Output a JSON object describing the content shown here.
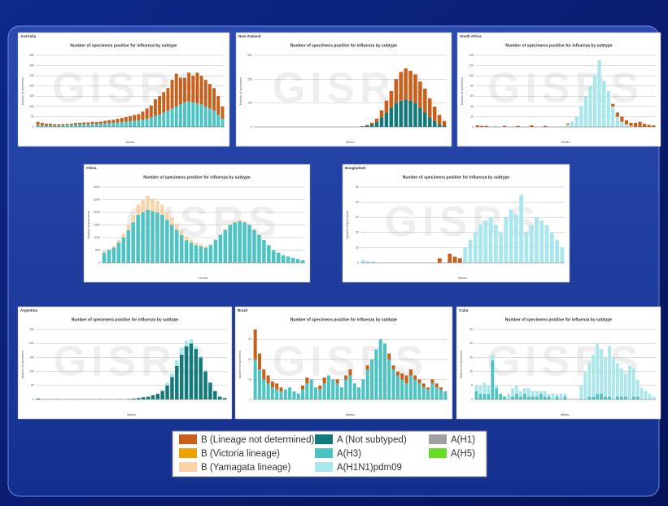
{
  "watermark": "GISRS",
  "legend": [
    {
      "name": "B (Lineage not determined)",
      "color": "#c8601c"
    },
    {
      "name": "B (Victoria lineage)",
      "color": "#f0a000"
    },
    {
      "name": "B (Yamagata lineage)",
      "color": "#f9d4a8"
    },
    {
      "name": "A (Not subtyped)",
      "color": "#127a7a"
    },
    {
      "name": "A(H3)",
      "color": "#4cc4c4"
    },
    {
      "name": "A(H1N1)pdm09",
      "color": "#a8e8ec"
    },
    {
      "name": "A(H1)",
      "color": "#a0a0a0"
    },
    {
      "name": "A(H5)",
      "color": "#66dd22"
    }
  ],
  "chart_data": [
    {
      "type": "bar",
      "stacked": true,
      "country": "Australia",
      "title": "Number of specimens positive for influenza by subtype",
      "y_label": "Number of specimens",
      "x_label": "Weeks",
      "ylim": [
        0,
        350
      ],
      "yticks": [
        0,
        50,
        100,
        150,
        200,
        250,
        300,
        350
      ],
      "grid": true,
      "series": [
        {
          "name": "A(H3)",
          "color": "#4cc4c4",
          "values": [
            10,
            8,
            6,
            8,
            5,
            6,
            8,
            10,
            10,
            12,
            12,
            14,
            14,
            15,
            14,
            16,
            18,
            18,
            20,
            22,
            24,
            26,
            28,
            30,
            32,
            35,
            40,
            45,
            55,
            60,
            70,
            80,
            90,
            100,
            110,
            120,
            125,
            120,
            115,
            110,
            100,
            90,
            80,
            60,
            40
          ]
        },
        {
          "name": "B (Lineage not determined)",
          "color": "#c8601c",
          "values": [
            15,
            12,
            10,
            8,
            8,
            6,
            6,
            5,
            6,
            8,
            8,
            8,
            8,
            10,
            10,
            10,
            12,
            15,
            15,
            18,
            20,
            22,
            25,
            28,
            30,
            40,
            50,
            60,
            80,
            90,
            100,
            110,
            140,
            160,
            130,
            120,
            140,
            130,
            150,
            140,
            130,
            120,
            110,
            90,
            60
          ]
        }
      ]
    },
    {
      "type": "bar",
      "stacked": true,
      "country": "New Zealand",
      "title": "Number of specimens positive for influenza by subtype",
      "y_label": "Number of specimens",
      "x_label": "Weeks",
      "ylim": [
        0,
        300
      ],
      "yticks": [
        0,
        100,
        200,
        300
      ],
      "grid": true,
      "series": [
        {
          "name": "A (Not subtyped)",
          "color": "#127a7a",
          "values": [
            0,
            0,
            0,
            0,
            0,
            0,
            0,
            0,
            0,
            0,
            0,
            0,
            0,
            0,
            0,
            0,
            0,
            0,
            0,
            0,
            0,
            0,
            2,
            5,
            10,
            20,
            40,
            60,
            80,
            100,
            110,
            115,
            110,
            100,
            80,
            60,
            40,
            25,
            10,
            5
          ]
        },
        {
          "name": "B (Lineage not determined)",
          "color": "#c8601c",
          "values": [
            0,
            0,
            0,
            0,
            0,
            0,
            0,
            0,
            0,
            0,
            0,
            0,
            0,
            0,
            0,
            0,
            0,
            0,
            0,
            0,
            0,
            0,
            1,
            3,
            8,
            15,
            30,
            50,
            70,
            100,
            120,
            130,
            125,
            120,
            110,
            100,
            80,
            60,
            40,
            20
          ]
        }
      ]
    },
    {
      "type": "bar",
      "stacked": true,
      "country": "South Africa",
      "title": "Number of specimens positive for influenza by subtype",
      "y_label": "Number of specimens",
      "x_label": "Weeks",
      "ylim": [
        0,
        140
      ],
      "yticks": [
        0,
        20,
        40,
        60,
        80,
        100,
        120,
        140
      ],
      "grid": true,
      "series": [
        {
          "name": "A(H1N1)pdm09",
          "color": "#a8e8ec",
          "values": [
            0,
            0,
            0,
            0,
            2,
            0,
            0,
            0,
            1,
            0,
            0,
            0,
            0,
            0,
            0,
            0,
            0,
            0,
            0,
            0,
            5,
            10,
            20,
            40,
            60,
            80,
            100,
            130,
            90,
            70,
            40,
            20,
            10,
            5,
            2,
            0,
            0,
            0,
            0,
            0
          ]
        },
        {
          "name": "B (Lineage not determined)",
          "color": "#c8601c",
          "values": [
            3,
            2,
            2,
            0,
            0,
            0,
            2,
            0,
            0,
            2,
            0,
            0,
            3,
            0,
            0,
            2,
            0,
            0,
            0,
            0,
            2,
            0,
            0,
            0,
            0,
            0,
            0,
            0,
            0,
            0,
            5,
            8,
            10,
            8,
            6,
            8,
            10,
            6,
            4,
            3
          ]
        }
      ]
    },
    {
      "type": "bar",
      "stacked": true,
      "country": "China",
      "title": "Number of specimens positive for influenza by subtype",
      "y_label": "Number of specimens",
      "x_label": "Weeks",
      "ylim": [
        0,
        3000
      ],
      "yticks": [
        0,
        500,
        1000,
        1500,
        2000,
        2500,
        3000
      ],
      "grid": true,
      "series": [
        {
          "name": "A(H3)",
          "color": "#4cc4c4",
          "values": [
            400,
            500,
            600,
            800,
            1000,
            1300,
            1600,
            1900,
            2000,
            2100,
            2050,
            2000,
            1900,
            1700,
            1500,
            1300,
            1100,
            900,
            800,
            700,
            650,
            600,
            700,
            900,
            1100,
            1300,
            1500,
            1600,
            1650,
            1600,
            1500,
            1300,
            1100,
            900,
            700,
            500,
            400,
            300,
            250,
            200,
            150,
            100
          ]
        },
        {
          "name": "B (Yamagata lineage)",
          "color": "#f9d4a8",
          "values": [
            50,
            50,
            80,
            100,
            150,
            200,
            300,
            400,
            500,
            550,
            500,
            450,
            400,
            350,
            300,
            250,
            200,
            150,
            120,
            100,
            80,
            60,
            40,
            40,
            40,
            40,
            40,
            50,
            60,
            50,
            40,
            30,
            20,
            10,
            10,
            0,
            0,
            0,
            0,
            0,
            0,
            0
          ]
        }
      ]
    },
    {
      "type": "bar",
      "stacked": true,
      "country": "Bangladesh",
      "title": "Number of specimens positive for influenza by subtype",
      "y_label": "Number of specimens",
      "x_label": "Weeks",
      "ylim": [
        0,
        50
      ],
      "yticks": [
        0,
        10,
        20,
        30,
        40,
        50
      ],
      "grid": true,
      "series": [
        {
          "name": "A(H1N1)pdm09",
          "color": "#a8e8ec",
          "values": [
            2,
            1,
            1,
            0,
            0,
            0,
            0,
            0,
            0,
            0,
            0,
            0,
            0,
            0,
            0,
            0,
            0,
            0,
            0,
            0,
            10,
            15,
            20,
            25,
            28,
            30,
            25,
            20,
            30,
            35,
            32,
            45,
            20,
            25,
            30,
            28,
            25,
            20,
            15,
            10
          ]
        },
        {
          "name": "B (Lineage not determined)",
          "color": "#c8601c",
          "values": [
            0,
            0,
            0,
            0,
            0,
            0,
            0,
            0,
            0,
            0,
            0,
            0,
            0,
            0,
            0,
            3,
            0,
            6,
            4,
            3,
            0,
            0,
            0,
            0,
            0,
            0,
            0,
            0,
            0,
            0,
            0,
            0,
            0,
            0,
            0,
            0,
            0,
            0,
            0,
            0
          ]
        }
      ]
    },
    {
      "type": "bar",
      "stacked": true,
      "country": "Argentina",
      "title": "Number of specimens positive for influenza by subtype",
      "y_label": "Number of specimens",
      "x_label": "Weeks",
      "ylim": [
        0,
        250
      ],
      "yticks": [
        0,
        50,
        100,
        150,
        200,
        250
      ],
      "grid": true,
      "series": [
        {
          "name": "A (Not subtyped)",
          "color": "#127a7a",
          "values": [
            3,
            0,
            1,
            0,
            1,
            0,
            0,
            0,
            1,
            0,
            0,
            0,
            0,
            1,
            0,
            0,
            0,
            1,
            0,
            2,
            3,
            5,
            8,
            10,
            15,
            20,
            30,
            50,
            80,
            120,
            160,
            190,
            200,
            180,
            150,
            100,
            60,
            30,
            10,
            5
          ]
        },
        {
          "name": "A(H1N1)pdm09",
          "color": "#a8e8ec",
          "values": [
            0,
            0,
            0,
            0,
            0,
            0,
            0,
            0,
            0,
            0,
            0,
            0,
            0,
            0,
            0,
            0,
            0,
            0,
            0,
            0,
            0,
            0,
            0,
            0,
            0,
            0,
            5,
            10,
            15,
            20,
            25,
            20,
            15,
            10,
            5,
            5,
            0,
            0,
            0,
            0
          ]
        }
      ]
    },
    {
      "type": "bar",
      "stacked": true,
      "country": "Brazil",
      "title": "Number of specimens positive for influenza by subtype",
      "y_label": "Number of specimens",
      "x_label": "Weeks",
      "ylim": [
        0,
        35
      ],
      "yticks": [
        0,
        10,
        20,
        30
      ],
      "grid": true,
      "series": [
        {
          "name": "A(H3)",
          "color": "#4cc4c4",
          "values": [
            20,
            15,
            10,
            8,
            6,
            5,
            4,
            5,
            6,
            4,
            3,
            5,
            8,
            10,
            6,
            5,
            8,
            12,
            10,
            8,
            6,
            10,
            12,
            8,
            6,
            10,
            15,
            20,
            25,
            30,
            28,
            20,
            15,
            12,
            10,
            8,
            12,
            10,
            8,
            6,
            5,
            8,
            6,
            5,
            4
          ]
        },
        {
          "name": "B (Lineage not determined)",
          "color": "#c8601c",
          "values": [
            15,
            8,
            5,
            4,
            3,
            3,
            2,
            0,
            0,
            0,
            0,
            2,
            3,
            0,
            0,
            2,
            3,
            0,
            0,
            2,
            0,
            2,
            3,
            0,
            0,
            0,
            2,
            0,
            0,
            0,
            0,
            3,
            2,
            2,
            3,
            4,
            3,
            2,
            2,
            2,
            1,
            2,
            2,
            1,
            0
          ]
        }
      ]
    },
    {
      "type": "bar",
      "stacked": true,
      "country": "Cuba",
      "title": "Number of specimens positive for influenza by subtype",
      "y_label": "Number of specimens",
      "x_label": "Weeks",
      "ylim": [
        0,
        25
      ],
      "yticks": [
        0,
        5,
        10,
        15,
        20,
        25
      ],
      "grid": true,
      "series": [
        {
          "name": "A(H3)",
          "color": "#4cc4c4",
          "values": [
            3,
            2,
            2,
            2,
            14,
            4,
            2,
            1,
            0,
            1,
            2,
            1,
            2,
            1,
            1,
            1,
            2,
            1,
            1,
            0,
            1,
            0,
            1,
            0,
            0,
            0,
            0,
            0,
            1,
            1,
            2,
            2,
            1,
            1,
            0,
            1,
            1,
            1,
            0,
            1,
            1,
            0,
            0,
            0,
            0
          ]
        },
        {
          "name": "A(H1N1)pdm09",
          "color": "#a8e8ec",
          "values": [
            2,
            3,
            4,
            3,
            2,
            1,
            0,
            0,
            2,
            3,
            3,
            2,
            2,
            3,
            2,
            2,
            1,
            2,
            1,
            2,
            1,
            2,
            1,
            0,
            0,
            0,
            5,
            10,
            12,
            15,
            18,
            16,
            14,
            18,
            15,
            12,
            10,
            8,
            12,
            10,
            6,
            4,
            3,
            2,
            1
          ]
        }
      ]
    }
  ]
}
